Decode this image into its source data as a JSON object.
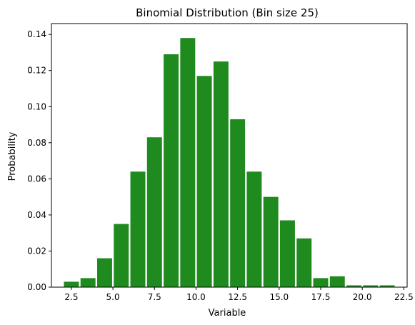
{
  "chart_data": {
    "type": "bar",
    "title": "Binomial Distribution (Bin size 25)",
    "xlabel": "Variable",
    "ylabel": "Probability",
    "bar_color": "#1f8b1f",
    "xlim": [
      1.3,
      22.7
    ],
    "ylim": [
      0,
      0.146
    ],
    "xticks": [
      2.5,
      5.0,
      7.5,
      10.0,
      12.5,
      15.0,
      17.5,
      20.0,
      22.5
    ],
    "xtick_labels": [
      "2.5",
      "5.0",
      "7.5",
      "10.0",
      "12.5",
      "15.0",
      "17.5",
      "20.0",
      "22.5"
    ],
    "yticks": [
      0.0,
      0.02,
      0.04,
      0.06,
      0.08,
      0.1,
      0.12,
      0.14
    ],
    "ytick_labels": [
      "0.00",
      "0.02",
      "0.04",
      "0.06",
      "0.08",
      "0.10",
      "0.12",
      "0.14"
    ],
    "bins": [
      {
        "x0": 2.0,
        "x1": 3.0,
        "value": 0.003
      },
      {
        "x0": 3.0,
        "x1": 4.0,
        "value": 0.005
      },
      {
        "x0": 4.0,
        "x1": 5.0,
        "value": 0.016
      },
      {
        "x0": 5.0,
        "x1": 6.0,
        "value": 0.035
      },
      {
        "x0": 6.0,
        "x1": 7.0,
        "value": 0.064
      },
      {
        "x0": 7.0,
        "x1": 8.0,
        "value": 0.083
      },
      {
        "x0": 8.0,
        "x1": 9.0,
        "value": 0.129
      },
      {
        "x0": 9.0,
        "x1": 10.0,
        "value": 0.138
      },
      {
        "x0": 10.0,
        "x1": 11.0,
        "value": 0.117
      },
      {
        "x0": 11.0,
        "x1": 12.0,
        "value": 0.125
      },
      {
        "x0": 12.0,
        "x1": 13.0,
        "value": 0.093
      },
      {
        "x0": 13.0,
        "x1": 14.0,
        "value": 0.064
      },
      {
        "x0": 14.0,
        "x1": 15.0,
        "value": 0.05
      },
      {
        "x0": 15.0,
        "x1": 16.0,
        "value": 0.037
      },
      {
        "x0": 16.0,
        "x1": 17.0,
        "value": 0.027
      },
      {
        "x0": 17.0,
        "x1": 18.0,
        "value": 0.005
      },
      {
        "x0": 18.0,
        "x1": 19.0,
        "value": 0.006
      },
      {
        "x0": 19.0,
        "x1": 20.0,
        "value": 0.001
      },
      {
        "x0": 20.0,
        "x1": 21.0,
        "value": 0.001
      },
      {
        "x0": 21.0,
        "x1": 22.0,
        "value": 0.001
      }
    ]
  }
}
